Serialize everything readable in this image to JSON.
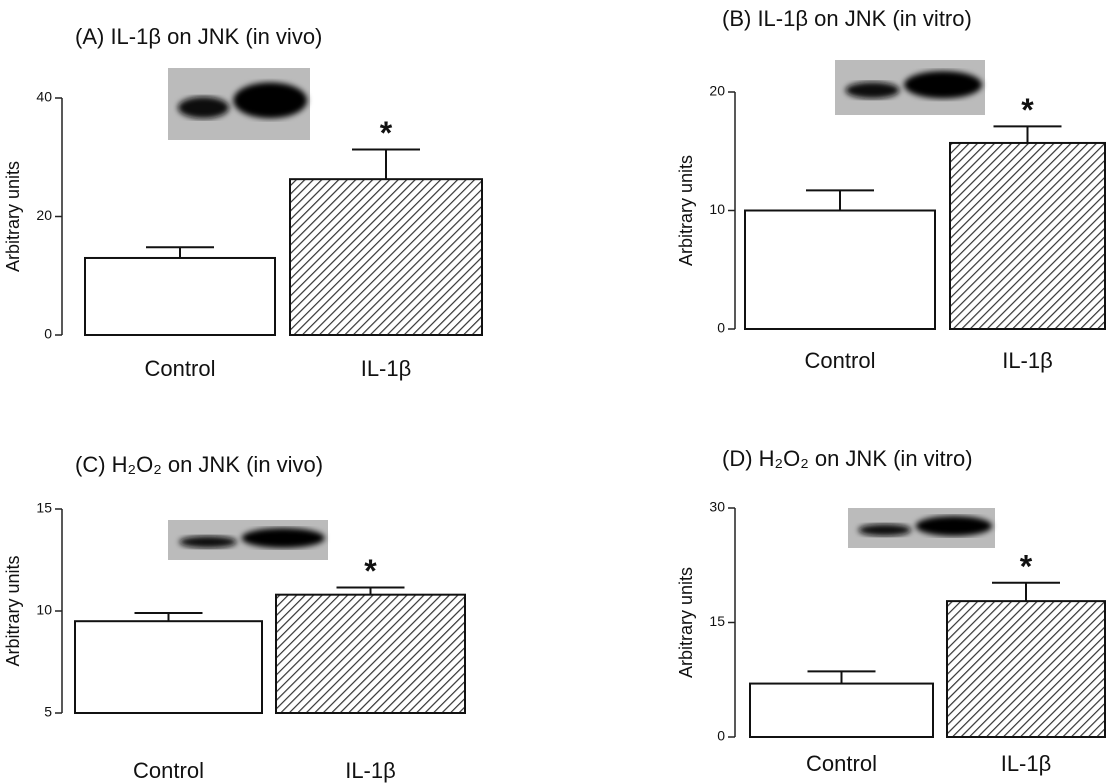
{
  "chart_data": [
    {
      "type": "bar",
      "title": "(A) IL-1β on JNK (in vivo)",
      "y_label": "Arbitrary units",
      "categories": [
        "Control",
        "IL-1β"
      ],
      "values": [
        13,
        26.3
      ],
      "errors": [
        1.8,
        5
      ],
      "colors": [
        "#ffffff",
        "#555555"
      ],
      "hatched": [
        false,
        true
      ],
      "ylim": [
        0,
        40
      ],
      "yticks": [
        0,
        20,
        40
      ],
      "annotations": [
        {
          "text": "*",
          "index": 1
        }
      ]
    },
    {
      "type": "bar",
      "title": "(B) IL-1β on JNK (in vitro)",
      "y_label": "Arbitrary units",
      "categories": [
        "Control",
        "IL-1β"
      ],
      "values": [
        10,
        15.7
      ],
      "errors": [
        1.7,
        1.4
      ],
      "colors": [
        "#ffffff",
        "#555555"
      ],
      "hatched": [
        false,
        true
      ],
      "ylim": [
        0,
        20
      ],
      "yticks": [
        0,
        10,
        20
      ],
      "annotations": [
        {
          "text": "*",
          "index": 1
        }
      ]
    },
    {
      "type": "bar",
      "title": "(C) H₂O₂ on JNK (in vivo)",
      "y_label": "Arbitrary units",
      "categories": [
        "Control",
        "IL-1β"
      ],
      "values": [
        9.5,
        10.8
      ],
      "errors": [
        0.4,
        0.35
      ],
      "colors": [
        "#ffffff",
        "#555555"
      ],
      "hatched": [
        false,
        true
      ],
      "ylim": [
        5,
        15
      ],
      "yticks": [
        5,
        10,
        15
      ],
      "annotations": [
        {
          "text": "*",
          "index": 1
        }
      ]
    },
    {
      "type": "bar",
      "title": "(D) H₂O₂ on JNK (in vitro)",
      "y_label": "Arbitrary units",
      "categories": [
        "Control",
        "IL-1β"
      ],
      "values": [
        7,
        17.8
      ],
      "errors": [
        1.6,
        2.4
      ],
      "colors": [
        "#ffffff",
        "#555555"
      ],
      "hatched": [
        false,
        true
      ],
      "ylim": [
        0,
        30
      ],
      "yticks": [
        0,
        15,
        30
      ],
      "annotations": [
        {
          "text": "*",
          "index": 1
        }
      ]
    }
  ]
}
